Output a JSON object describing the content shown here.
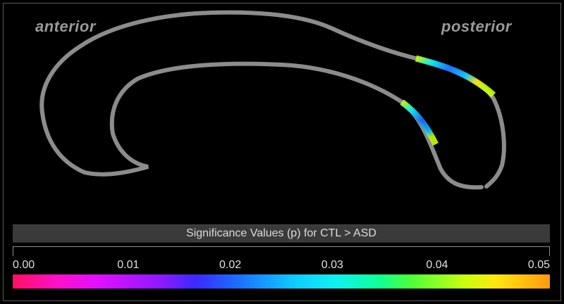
{
  "labels": {
    "anterior": "anterior",
    "posterior": "posterior"
  },
  "legend": {
    "title": "Significance Values (p) for CTL > ASD",
    "ticks": [
      "0.00",
      "0.01",
      "0.02",
      "0.03",
      "0.04",
      "0.05"
    ],
    "range": [
      0.0,
      0.05
    ],
    "colors": {
      "min": "#ff1060",
      "mid_low": "#1a70ff",
      "mid": "#10f0f0",
      "mid_high": "#c8ff10",
      "max": "#ff9a10"
    }
  },
  "tract": {
    "color": "#8c8c8c"
  }
}
